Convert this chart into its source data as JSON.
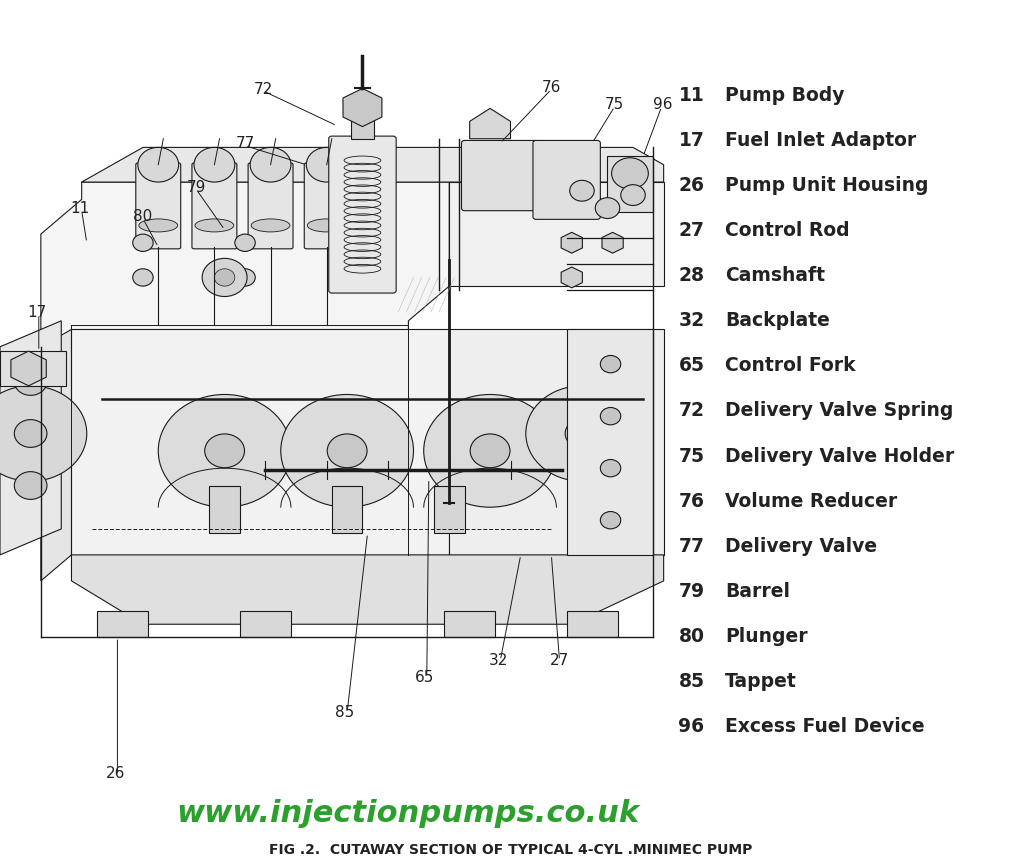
{
  "background_color": "#ffffff",
  "parts": [
    {
      "number": "11",
      "name": "Pump Body"
    },
    {
      "number": "17",
      "name": "Fuel Inlet Adaptor"
    },
    {
      "number": "26",
      "name": "Pump Unit Housing"
    },
    {
      "number": "27",
      "name": "Control Rod"
    },
    {
      "number": "28",
      "name": "Camshaft"
    },
    {
      "number": "32",
      "name": "Backplate"
    },
    {
      "number": "65",
      "name": "Control Fork"
    },
    {
      "number": "72",
      "name": "Delivery Valve Spring"
    },
    {
      "number": "75",
      "name": "Delivery Valve Holder"
    },
    {
      "number": "76",
      "name": "Volume Reducer"
    },
    {
      "number": "77",
      "name": "Delivery Valve"
    },
    {
      "number": "79",
      "name": "Barrel"
    },
    {
      "number": "80",
      "name": "Plunger"
    },
    {
      "number": "85",
      "name": "Tappet"
    },
    {
      "number": "96",
      "name": "Excess Fuel Device"
    }
  ],
  "website_text": "www.injectionpumps.co.uk",
  "website_color": "#2ca02c",
  "website_fontsize": 22,
  "caption": "FIG .2.  CUTAWAY SECTION OF TYPICAL 4-CYL .MINIMEC PUMP",
  "caption_fontsize": 10,
  "caption_color": "#222222",
  "legend_number_color": "#222222",
  "legend_name_color": "#222222",
  "legend_fontsize": 13.5,
  "legend_number_fontsize": 13.5,
  "label_color": "#222222",
  "label_fontsize": 11
}
